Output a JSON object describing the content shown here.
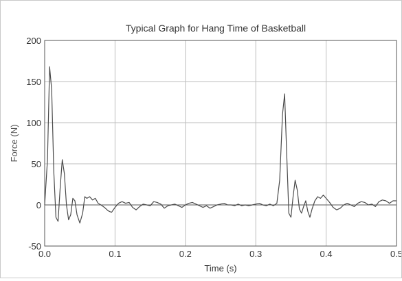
{
  "chart_data": {
    "type": "line",
    "title": "Typical Graph for Hang Time of Basketball",
    "xlabel": "Time (s)",
    "ylabel": "Force (N)",
    "xlim": [
      0,
      0.5
    ],
    "ylim": [
      -50,
      200
    ],
    "x_ticks": [
      0.0,
      0.1,
      0.2,
      0.3,
      0.4,
      0.5
    ],
    "x_tick_labels": [
      "0.0",
      "0.1",
      "0.2",
      "0.3",
      "0.4",
      "0.5"
    ],
    "y_ticks": [
      -50,
      0,
      50,
      100,
      150,
      200
    ],
    "y_tick_labels": [
      "-50",
      "0",
      "50",
      "100",
      "150",
      "200"
    ],
    "grid": true,
    "series": [
      {
        "color": "#4a4a4a",
        "x": [
          0.0,
          0.004,
          0.007,
          0.01,
          0.013,
          0.016,
          0.019,
          0.022,
          0.025,
          0.028,
          0.031,
          0.034,
          0.037,
          0.04,
          0.043,
          0.046,
          0.05,
          0.054,
          0.057,
          0.06,
          0.064,
          0.068,
          0.072,
          0.076,
          0.08,
          0.085,
          0.09,
          0.095,
          0.1,
          0.105,
          0.11,
          0.115,
          0.12,
          0.125,
          0.13,
          0.135,
          0.14,
          0.145,
          0.15,
          0.155,
          0.16,
          0.165,
          0.17,
          0.175,
          0.18,
          0.185,
          0.19,
          0.195,
          0.2,
          0.205,
          0.21,
          0.215,
          0.22,
          0.225,
          0.23,
          0.235,
          0.24,
          0.245,
          0.25,
          0.255,
          0.26,
          0.265,
          0.27,
          0.275,
          0.28,
          0.285,
          0.29,
          0.295,
          0.3,
          0.305,
          0.31,
          0.315,
          0.32,
          0.325,
          0.33,
          0.334,
          0.338,
          0.341,
          0.344,
          0.347,
          0.35,
          0.353,
          0.356,
          0.359,
          0.362,
          0.365,
          0.368,
          0.371,
          0.374,
          0.377,
          0.38,
          0.384,
          0.388,
          0.392,
          0.396,
          0.4,
          0.405,
          0.41,
          0.415,
          0.42,
          0.425,
          0.43,
          0.435,
          0.44,
          0.445,
          0.45,
          0.455,
          0.46,
          0.465,
          0.47,
          0.475,
          0.48,
          0.485,
          0.49,
          0.495,
          0.5
        ],
        "y": [
          0,
          55,
          168,
          140,
          40,
          -15,
          -20,
          20,
          55,
          38,
          0,
          -18,
          -12,
          8,
          5,
          -12,
          -22,
          -10,
          10,
          8,
          10,
          6,
          8,
          2,
          0,
          -3,
          -7,
          -9,
          -3,
          2,
          4,
          2,
          3,
          -3,
          -6,
          -2,
          1,
          0,
          -1,
          4,
          3,
          1,
          -4,
          -1,
          0,
          1,
          -1,
          -3,
          0,
          2,
          3,
          1,
          -1,
          -3,
          -1,
          -4,
          -2,
          0,
          1,
          2,
          0,
          0,
          -1,
          1,
          -1,
          0,
          -1,
          0,
          1,
          2,
          0,
          -1,
          1,
          -1,
          2,
          30,
          110,
          135,
          60,
          -10,
          -15,
          10,
          30,
          18,
          -5,
          -10,
          -2,
          5,
          -8,
          -15,
          -5,
          5,
          10,
          8,
          12,
          8,
          3,
          -3,
          -6,
          -4,
          0,
          2,
          0,
          -2,
          2,
          4,
          3,
          0,
          1,
          -2,
          4,
          6,
          5,
          2,
          5,
          5
        ]
      }
    ]
  }
}
